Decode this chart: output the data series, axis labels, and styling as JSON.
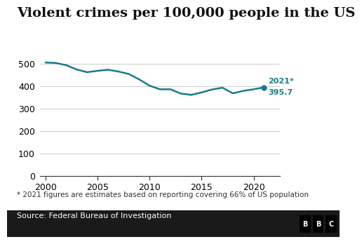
{
  "title": "Violent crimes per 100,000 people in the US",
  "years": [
    2000,
    2001,
    2002,
    2003,
    2004,
    2005,
    2006,
    2007,
    2008,
    2009,
    2010,
    2011,
    2012,
    2013,
    2014,
    2015,
    2016,
    2017,
    2018,
    2019,
    2020,
    2021
  ],
  "values": [
    506,
    504,
    494,
    475,
    463,
    469,
    474,
    466,
    455,
    431,
    403,
    387,
    387,
    368,
    362,
    373,
    386,
    394,
    369,
    380,
    387,
    395.7
  ],
  "line_color": "#1a7a8a",
  "dot_color": "#1a7a8a",
  "annotation_line1": "2021*",
  "annotation_line2": "395.7",
  "annotation_color": "#1a7a8a",
  "footnote": "* 2021 figures are estimates based on reporting covering 66% of US population",
  "source": "Source: Federal Bureau of Investigation",
  "ylim": [
    0,
    540
  ],
  "yticks": [
    0,
    100,
    200,
    300,
    400,
    500
  ],
  "xlim": [
    1999.5,
    2022.5
  ],
  "xticks": [
    2000,
    2005,
    2010,
    2015,
    2020
  ],
  "background_color": "#ffffff",
  "plot_bg_color": "#ffffff",
  "grid_color": "#cccccc",
  "title_fontsize": 14,
  "axis_fontsize": 9,
  "footnote_fontsize": 7.5,
  "source_fontsize": 8,
  "source_bar_color": "#1a1a1a",
  "source_text_color": "#ffffff"
}
